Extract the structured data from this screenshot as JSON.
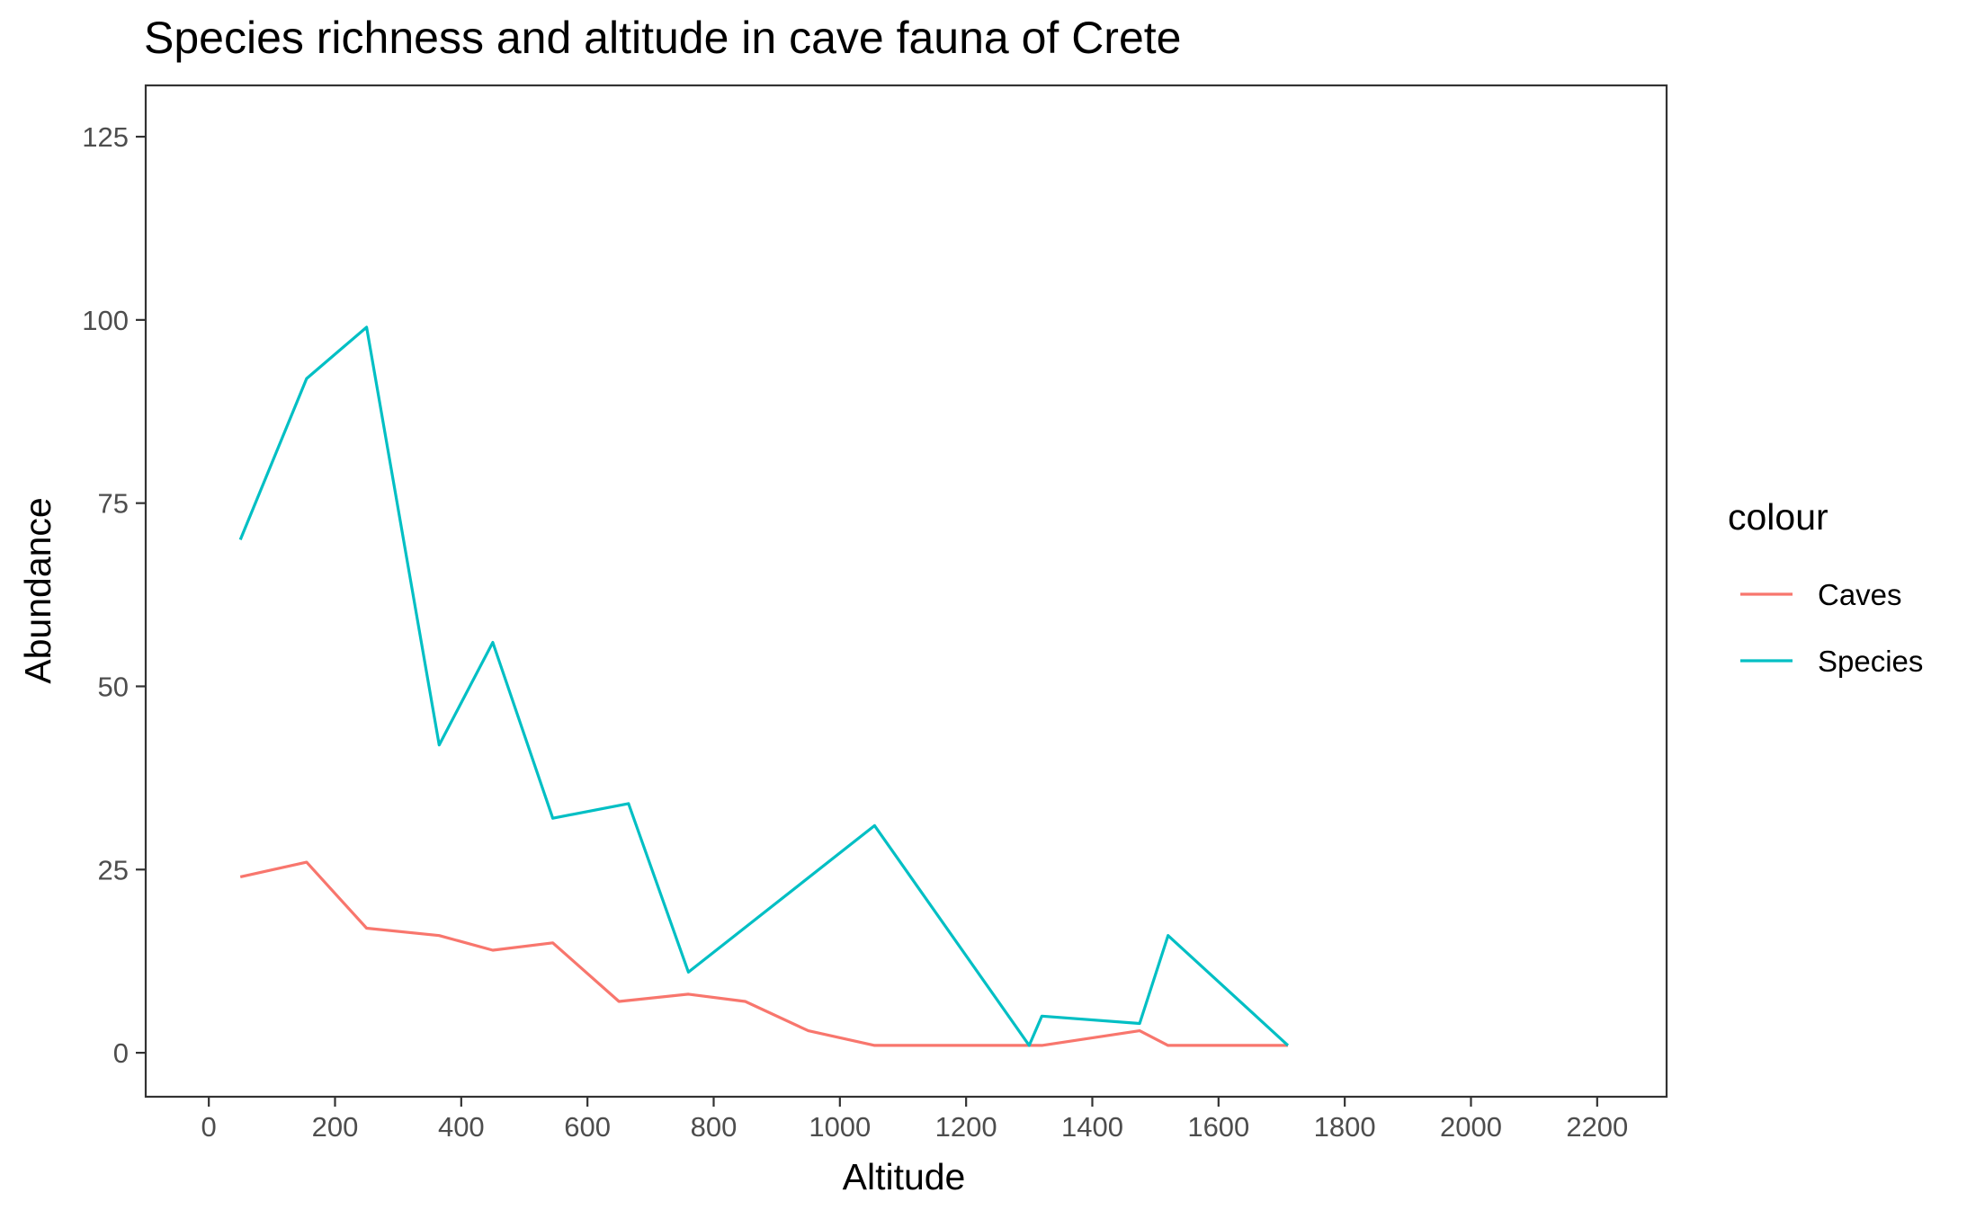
{
  "chart_data": {
    "type": "line",
    "title": "Species richness and altitude in cave fauna of Crete",
    "xlabel": "Altitude",
    "ylabel": "Abundance",
    "xlim": [
      -100,
      2310
    ],
    "ylim": [
      -6,
      132
    ],
    "x_ticks": [
      0,
      200,
      400,
      600,
      800,
      1000,
      1200,
      1400,
      1600,
      1800,
      2000,
      2200
    ],
    "y_ticks": [
      0,
      25,
      50,
      75,
      100,
      125
    ],
    "grid": false,
    "legend": {
      "title": "colour",
      "position": "right",
      "entries": [
        "Caves",
        "Species"
      ]
    },
    "series": [
      {
        "name": "Caves",
        "color": "#F8766D",
        "points": [
          [
            50,
            24
          ],
          [
            155,
            26
          ],
          [
            250,
            17
          ],
          [
            365,
            16
          ],
          [
            450,
            14
          ],
          [
            545,
            15
          ],
          [
            650,
            7
          ],
          [
            760,
            8
          ],
          [
            850,
            7
          ],
          [
            950,
            3
          ],
          [
            1055,
            1
          ],
          [
            1200,
            1
          ],
          [
            1300,
            1
          ],
          [
            1320,
            1
          ],
          [
            1475,
            3
          ],
          [
            1520,
            1
          ],
          [
            1710,
            1
          ]
        ]
      },
      {
        "name": "Species",
        "color": "#00BFC4",
        "points": [
          [
            50,
            70
          ],
          [
            155,
            92
          ],
          [
            250,
            99
          ],
          [
            365,
            42
          ],
          [
            450,
            56
          ],
          [
            545,
            32
          ],
          [
            665,
            34
          ],
          [
            760,
            11
          ],
          [
            1055,
            31
          ],
          [
            1300,
            1
          ],
          [
            1320,
            5
          ],
          [
            1475,
            4
          ],
          [
            1520,
            16
          ],
          [
            1710,
            1
          ]
        ]
      }
    ]
  }
}
